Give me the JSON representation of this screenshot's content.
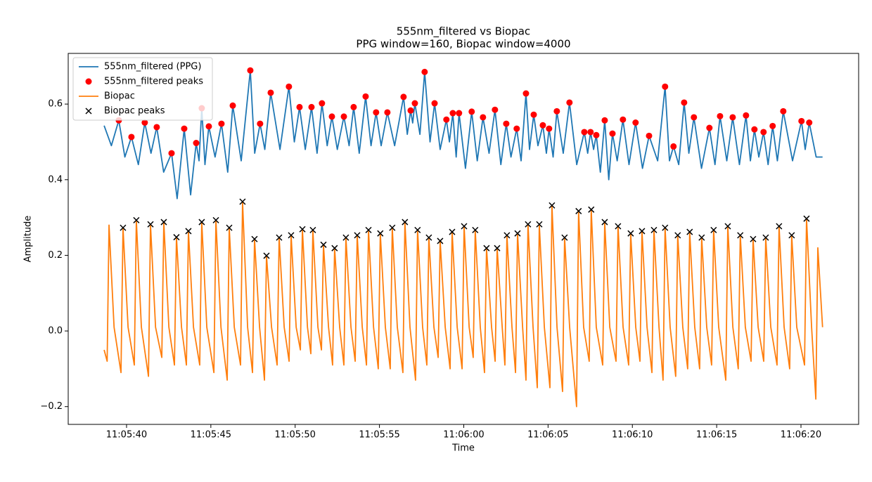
{
  "chart_data": {
    "type": "line",
    "title": "555nm_filtered vs Biopac",
    "subtitle": "PPG window=160, Biopac window=4000",
    "x_label": "Time",
    "y_label": "Amplitude",
    "xlim": [
      "11:05:36.54",
      "11:06:23.42"
    ],
    "xticks": [
      "11:05:40",
      "11:05:45",
      "11:05:50",
      "11:05:55",
      "11:06:00",
      "11:06:05",
      "11:06:10",
      "11:06:15",
      "11:06:20"
    ],
    "ylim": [
      -0.247,
      0.734
    ],
    "yticks": [
      {
        "value": -0.2,
        "label": "−0.2"
      },
      {
        "value": 0,
        "label": "0.0"
      },
      0.2,
      0.4,
      0.6
    ],
    "grid": false,
    "legend": "upper left",
    "series": [
      {
        "name": "555nm_filtered (PPG)",
        "color": "#1f77b4",
        "style": "line",
        "x": [
          "11:05:38.67",
          "11:05:39.10",
          "11:05:39.54",
          "11:05:39.90",
          "11:05:40.29",
          "11:05:40.70",
          "11:05:41.08",
          "11:05:41.45",
          "11:05:41.79",
          "11:05:42.20",
          "11:05:42.67",
          "11:05:43.00",
          "11:05:43.42",
          "11:05:43.80",
          "11:05:44.13",
          "11:05:44.30",
          "11:05:44.46",
          "11:05:44.65",
          "11:05:44.88",
          "11:05:45.25",
          "11:05:45.63",
          "11:05:46.00",
          "11:05:46.30",
          "11:05:46.80",
          "11:05:47.34",
          "11:05:47.60",
          "11:05:47.92",
          "11:05:48.20",
          "11:05:48.55",
          "11:05:49.10",
          "11:05:49.63",
          "11:05:49.95",
          "11:05:50.26",
          "11:05:50.60",
          "11:05:50.97",
          "11:05:51.30",
          "11:05:51.59",
          "11:05:51.90",
          "11:05:52.18",
          "11:05:52.50",
          "11:05:52.89",
          "11:05:53.20",
          "11:05:53.47",
          "11:05:53.80",
          "11:05:54.18",
          "11:05:54.50",
          "11:05:54.80",
          "11:05:55.10",
          "11:05:55.47",
          "11:05:55.90",
          "11:05:56.43",
          "11:05:56.65",
          "11:05:56.85",
          "11:05:56.97",
          "11:05:57.10",
          "11:05:57.40",
          "11:05:57.68",
          "11:05:58.00",
          "11:05:58.27",
          "11:05:58.60",
          "11:05:58.97",
          "11:05:59.15",
          "11:05:59.35",
          "11:05:59.55",
          "11:05:59.72",
          "11:06:00.10",
          "11:06:00.47",
          "11:06:00.80",
          "11:06:01.14",
          "11:06:01.50",
          "11:06:01.85",
          "11:06:02.20",
          "11:06:02.52",
          "11:06:02.80",
          "11:06:03.14",
          "11:06:03.40",
          "11:06:03.69",
          "11:06:03.90",
          "11:06:04.15",
          "11:06:04.40",
          "11:06:04.69",
          "11:06:04.90",
          "11:06:05.06",
          "11:06:05.30",
          "11:06:05.52",
          "11:06:05.90",
          "11:06:06.27",
          "11:06:06.70",
          "11:06:07.15",
          "11:06:07.35",
          "11:06:07.52",
          "11:06:07.70",
          "11:06:07.86",
          "11:06:08.10",
          "11:06:08.36",
          "11:06:08.60",
          "11:06:08.82",
          "11:06:09.10",
          "11:06:09.44",
          "11:06:09.80",
          "11:06:10.19",
          "11:06:10.60",
          "11:06:10.99",
          "11:06:11.50",
          "11:06:11.94",
          "11:06:12.20",
          "11:06:12.44",
          "11:06:12.75",
          "11:06:13.07",
          "11:06:13.35",
          "11:06:13.65",
          "11:06:14.10",
          "11:06:14.57",
          "11:06:14.90",
          "11:06:15.20",
          "11:06:15.60",
          "11:06:15.95",
          "11:06:16.35",
          "11:06:16.74",
          "11:06:17.00",
          "11:06:17.24",
          "11:06:17.50",
          "11:06:17.78",
          "11:06:18.05",
          "11:06:18.32",
          "11:06:18.60",
          "11:06:18.95",
          "11:06:19.50",
          "11:06:20.03",
          "11:06:20.25",
          "11:06:20.49",
          "11:06:20.90",
          "11:06:21.28"
        ],
        "values": [
          0.543,
          0.49,
          0.557,
          0.46,
          0.513,
          0.44,
          0.551,
          0.47,
          0.539,
          0.42,
          0.47,
          0.35,
          0.535,
          0.36,
          0.497,
          0.45,
          0.589,
          0.44,
          0.541,
          0.46,
          0.548,
          0.42,
          0.596,
          0.45,
          0.689,
          0.47,
          0.548,
          0.48,
          0.63,
          0.48,
          0.646,
          0.5,
          0.592,
          0.48,
          0.592,
          0.47,
          0.602,
          0.49,
          0.567,
          0.48,
          0.567,
          0.49,
          0.592,
          0.47,
          0.62,
          0.49,
          0.578,
          0.49,
          0.578,
          0.49,
          0.619,
          0.52,
          0.583,
          0.55,
          0.602,
          0.52,
          0.685,
          0.5,
          0.602,
          0.48,
          0.559,
          0.5,
          0.576,
          0.46,
          0.576,
          0.43,
          0.58,
          0.45,
          0.565,
          0.47,
          0.585,
          0.44,
          0.548,
          0.46,
          0.535,
          0.45,
          0.628,
          0.48,
          0.572,
          0.49,
          0.544,
          0.47,
          0.535,
          0.46,
          0.581,
          0.47,
          0.604,
          0.44,
          0.526,
          0.47,
          0.526,
          0.48,
          0.518,
          0.42,
          0.557,
          0.4,
          0.522,
          0.45,
          0.559,
          0.44,
          0.551,
          0.43,
          0.516,
          0.45,
          0.646,
          0.45,
          0.488,
          0.44,
          0.604,
          0.47,
          0.565,
          0.43,
          0.537,
          0.44,
          0.568,
          0.45,
          0.565,
          0.44,
          0.57,
          0.45,
          0.533,
          0.46,
          0.526,
          0.44,
          0.542,
          0.45,
          0.581,
          0.45,
          0.555,
          0.48,
          0.551,
          0.46,
          0.46
        ]
      },
      {
        "name": "555nm_filtered peaks",
        "color": "#ff0000",
        "style": "o",
        "x": [
          "11:05:39.54",
          "11:05:40.29",
          "11:05:41.08",
          "11:05:41.79",
          "11:05:42.67",
          "11:05:43.42",
          "11:05:44.13",
          "11:05:44.46",
          "11:05:44.88",
          "11:05:45.63",
          "11:05:46.30",
          "11:05:47.34",
          "11:05:47.92",
          "11:05:48.55",
          "11:05:49.63",
          "11:05:50.26",
          "11:05:50.97",
          "11:05:51.59",
          "11:05:52.18",
          "11:05:52.89",
          "11:05:53.47",
          "11:05:54.18",
          "11:05:54.80",
          "11:05:55.47",
          "11:05:56.43",
          "11:05:56.85",
          "11:05:57.10",
          "11:05:57.68",
          "11:05:58.27",
          "11:05:58.97",
          "11:05:59.35",
          "11:05:59.72",
          "11:06:00.47",
          "11:06:01.14",
          "11:06:01.85",
          "11:06:02.52",
          "11:06:03.14",
          "11:06:03.69",
          "11:06:04.15",
          "11:06:04.69",
          "11:06:05.06",
          "11:06:05.52",
          "11:06:06.27",
          "11:06:07.15",
          "11:06:07.52",
          "11:06:07.86",
          "11:06:08.36",
          "11:06:08.82",
          "11:06:09.44",
          "11:06:10.19",
          "11:06:10.99",
          "11:06:11.94",
          "11:06:12.44",
          "11:06:13.07",
          "11:06:13.65",
          "11:06:14.57",
          "11:06:15.20",
          "11:06:15.95",
          "11:06:16.74",
          "11:06:17.24",
          "11:06:17.78",
          "11:06:18.32",
          "11:06:18.95",
          "11:06:20.03",
          "11:06:20.49"
        ],
        "values": [
          0.557,
          0.513,
          0.551,
          0.539,
          0.47,
          0.535,
          0.497,
          0.589,
          0.541,
          0.548,
          0.596,
          0.689,
          0.548,
          0.63,
          0.646,
          0.592,
          0.592,
          0.602,
          0.567,
          0.567,
          0.592,
          0.62,
          0.578,
          0.578,
          0.619,
          0.583,
          0.602,
          0.685,
          0.602,
          0.559,
          0.576,
          0.576,
          0.58,
          0.565,
          0.585,
          0.548,
          0.535,
          0.628,
          0.572,
          0.544,
          0.535,
          0.581,
          0.604,
          0.526,
          0.526,
          0.518,
          0.557,
          0.522,
          0.559,
          0.551,
          0.516,
          0.646,
          0.488,
          0.604,
          0.565,
          0.537,
          0.568,
          0.565,
          0.57,
          0.533,
          0.526,
          0.542,
          0.581,
          0.555,
          0.551
        ]
      },
      {
        "name": "Biopac",
        "color": "#ff7f0e",
        "style": "line",
        "x": [
          "11:05:38.67",
          "11:05:38.85",
          "11:05:38.96",
          "11:05:39.26",
          "11:05:39.67",
          "11:05:39.79",
          "11:05:40.09",
          "11:05:40.46",
          "11:05:40.58",
          "11:05:40.88",
          "11:05:41.30",
          "11:05:41.42",
          "11:05:41.72",
          "11:05:42.09",
          "11:05:42.21",
          "11:05:42.51",
          "11:05:42.84",
          "11:05:42.96",
          "11:05:43.26",
          "11:05:43.55",
          "11:05:43.67",
          "11:05:43.97",
          "11:05:44.34",
          "11:05:44.46",
          "11:05:44.76",
          "11:05:45.18",
          "11:05:45.30",
          "11:05:45.60",
          "11:05:45.97",
          "11:05:46.09",
          "11:05:46.39",
          "11:05:46.76",
          "11:05:46.88",
          "11:05:47.18",
          "11:05:47.47",
          "11:05:47.59",
          "11:05:47.89",
          "11:05:48.18",
          "11:05:48.30",
          "11:05:48.60",
          "11:05:48.93",
          "11:05:49.05",
          "11:05:49.35",
          "11:05:49.64",
          "11:05:49.76",
          "11:05:50.06",
          "11:05:50.31",
          "11:05:50.43",
          "11:05:50.73",
          "11:05:50.93",
          "11:05:51.05",
          "11:05:51.35",
          "11:05:51.56",
          "11:05:51.68",
          "11:05:51.98",
          "11:05:52.22",
          "11:05:52.34",
          "11:05:52.64",
          "11:05:52.89",
          "11:05:53.01",
          "11:05:53.31",
          "11:05:53.56",
          "11:05:53.68",
          "11:05:53.98",
          "11:05:54.23",
          "11:05:54.35",
          "11:05:54.65",
          "11:05:54.93",
          "11:05:55.05",
          "11:05:55.35",
          "11:05:55.64",
          "11:05:55.76",
          "11:05:56.06",
          "11:05:56.39",
          "11:05:56.51",
          "11:05:56.81",
          "11:05:57.14",
          "11:05:57.26",
          "11:05:57.56",
          "11:05:57.81",
          "11:05:57.93",
          "11:05:58.23",
          "11:05:58.48",
          "11:05:58.60",
          "11:05:58.90",
          "11:05:59.19",
          "11:05:59.31",
          "11:05:59.61",
          "11:05:59.90",
          "11:06:00.02",
          "11:06:00.32",
          "11:06:00.56",
          "11:06:00.68",
          "11:06:00.98",
          "11:06:01.23",
          "11:06:01.35",
          "11:06:01.65",
          "11:06:01.86",
          "11:06:01.98",
          "11:06:02.28",
          "11:06:02.44",
          "11:06:02.56",
          "11:06:02.86",
          "11:06:03.07",
          "11:06:03.19",
          "11:06:03.49",
          "11:06:03.69",
          "11:06:03.81",
          "11:06:04.11",
          "11:06:04.36",
          "11:06:04.48",
          "11:06:04.78",
          "11:06:05.11",
          "11:06:05.23",
          "11:06:05.53",
          "11:06:05.86",
          "11:06:05.98",
          "11:06:06.28",
          "11:06:06.69",
          "11:06:06.81",
          "11:06:07.11",
          "11:06:07.44",
          "11:06:07.56",
          "11:06:07.86",
          "11:06:08.24",
          "11:06:08.36",
          "11:06:08.66",
          "11:06:09.03",
          "11:06:09.15",
          "11:06:09.45",
          "11:06:09.78",
          "11:06:09.90",
          "11:06:10.20",
          "11:06:10.45",
          "11:06:10.57",
          "11:06:10.87",
          "11:06:11.16",
          "11:06:11.28",
          "11:06:11.58",
          "11:06:11.82",
          "11:06:11.94",
          "11:06:12.24",
          "11:06:12.57",
          "11:06:12.69",
          "11:06:12.99",
          "11:06:13.28",
          "11:06:13.40",
          "11:06:13.70",
          "11:06:13.99",
          "11:06:14.11",
          "11:06:14.41",
          "11:06:14.70",
          "11:06:14.82",
          "11:06:15.12",
          "11:06:15.54",
          "11:06:15.66",
          "11:06:15.96",
          "11:06:16.28",
          "11:06:16.40",
          "11:06:16.70",
          "11:06:17.04",
          "11:06:17.16",
          "11:06:17.46",
          "11:06:17.79",
          "11:06:17.91",
          "11:06:18.21",
          "11:06:18.58",
          "11:06:18.70",
          "11:06:19.00",
          "11:06:19.33",
          "11:06:19.45",
          "11:06:19.75",
          "11:06:20.21",
          "11:06:20.33",
          "11:06:20.63",
          "11:06:20.88",
          "11:06:21.00",
          "11:06:21.28"
        ],
        "values": [
          -0.05,
          -0.08,
          0.28,
          0.01,
          -0.11,
          0.273,
          0.01,
          -0.09,
          0.293,
          0.01,
          -0.12,
          0.282,
          0.01,
          -0.07,
          0.288,
          0.01,
          -0.09,
          0.248,
          0.01,
          -0.09,
          0.264,
          0.01,
          -0.09,
          0.288,
          0.01,
          -0.11,
          0.293,
          0.01,
          -0.13,
          0.273,
          0.01,
          -0.09,
          0.342,
          0.01,
          -0.11,
          0.243,
          0.01,
          -0.13,
          0.199,
          0.01,
          -0.09,
          0.247,
          0.01,
          -0.08,
          0.253,
          0.01,
          -0.05,
          0.269,
          0.01,
          -0.06,
          0.267,
          0.01,
          -0.05,
          0.228,
          0.01,
          -0.09,
          0.219,
          0.01,
          -0.09,
          0.247,
          0.01,
          -0.08,
          0.253,
          0.01,
          -0.09,
          0.267,
          0.01,
          -0.1,
          0.258,
          0.01,
          -0.1,
          0.273,
          0.01,
          -0.11,
          0.288,
          0.01,
          -0.13,
          0.267,
          0.01,
          -0.09,
          0.247,
          0.01,
          -0.07,
          0.238,
          0.01,
          -0.1,
          0.262,
          0.01,
          -0.1,
          0.277,
          0.01,
          -0.07,
          0.267,
          0.01,
          -0.11,
          0.219,
          0.01,
          -0.08,
          0.219,
          0.01,
          -0.09,
          0.253,
          0.01,
          -0.11,
          0.258,
          0.01,
          -0.13,
          0.282,
          0.01,
          -0.15,
          0.282,
          0.01,
          -0.15,
          0.332,
          0.01,
          -0.16,
          0.247,
          0.01,
          -0.2,
          0.317,
          0.01,
          -0.08,
          0.321,
          0.01,
          -0.09,
          0.288,
          0.01,
          -0.08,
          0.277,
          0.01,
          -0.09,
          0.258,
          0.01,
          -0.08,
          0.264,
          0.01,
          -0.11,
          0.267,
          0.01,
          -0.13,
          0.273,
          0.01,
          -0.12,
          0.253,
          0.01,
          -0.1,
          0.262,
          0.01,
          -0.1,
          0.247,
          0.01,
          -0.09,
          0.267,
          0.01,
          -0.13,
          0.277,
          0.01,
          -0.1,
          0.253,
          0.01,
          -0.08,
          0.243,
          0.01,
          -0.08,
          0.247,
          0.01,
          -0.09,
          0.277,
          0.01,
          -0.1,
          0.253,
          0.01,
          -0.09,
          0.297,
          0.01,
          -0.18,
          0.22,
          0.01
        ]
      },
      {
        "name": "Biopac peaks",
        "color": "#000000",
        "style": "x",
        "x": [
          "11:05:39.79",
          "11:05:40.58",
          "11:05:41.42",
          "11:05:42.21",
          "11:05:42.96",
          "11:05:43.67",
          "11:05:44.46",
          "11:05:45.30",
          "11:05:46.09",
          "11:05:46.88",
          "11:05:47.59",
          "11:05:48.30",
          "11:05:49.05",
          "11:05:49.76",
          "11:05:50.43",
          "11:05:51.05",
          "11:05:51.68",
          "11:05:52.34",
          "11:05:53.01",
          "11:05:53.68",
          "11:05:54.35",
          "11:05:55.05",
          "11:05:55.76",
          "11:05:56.51",
          "11:05:57.26",
          "11:05:57.93",
          "11:05:58.60",
          "11:05:59.31",
          "11:06:00.02",
          "11:06:00.68",
          "11:06:01.35",
          "11:06:01.98",
          "11:06:02.56",
          "11:06:03.19",
          "11:06:03.81",
          "11:06:04.48",
          "11:06:05.23",
          "11:06:05.98",
          "11:06:06.81",
          "11:06:07.56",
          "11:06:08.36",
          "11:06:09.15",
          "11:06:09.90",
          "11:06:10.57",
          "11:06:11.28",
          "11:06:11.94",
          "11:06:12.69",
          "11:06:13.40",
          "11:06:14.11",
          "11:06:14.82",
          "11:06:15.66",
          "11:06:16.40",
          "11:06:17.16",
          "11:06:17.91",
          "11:06:18.70",
          "11:06:19.45",
          "11:06:20.33"
        ],
        "values": [
          0.273,
          0.293,
          0.282,
          0.288,
          0.248,
          0.264,
          0.288,
          0.293,
          0.273,
          0.342,
          0.243,
          0.199,
          0.247,
          0.253,
          0.269,
          0.267,
          0.228,
          0.219,
          0.247,
          0.253,
          0.267,
          0.258,
          0.273,
          0.288,
          0.267,
          0.247,
          0.238,
          0.262,
          0.277,
          0.267,
          0.219,
          0.219,
          0.253,
          0.258,
          0.282,
          0.282,
          0.332,
          0.247,
          0.317,
          0.321,
          0.288,
          0.277,
          0.258,
          0.264,
          0.267,
          0.273,
          0.253,
          0.262,
          0.247,
          0.267,
          0.277,
          0.253,
          0.243,
          0.247,
          0.277,
          0.253,
          0.297
        ]
      }
    ]
  }
}
